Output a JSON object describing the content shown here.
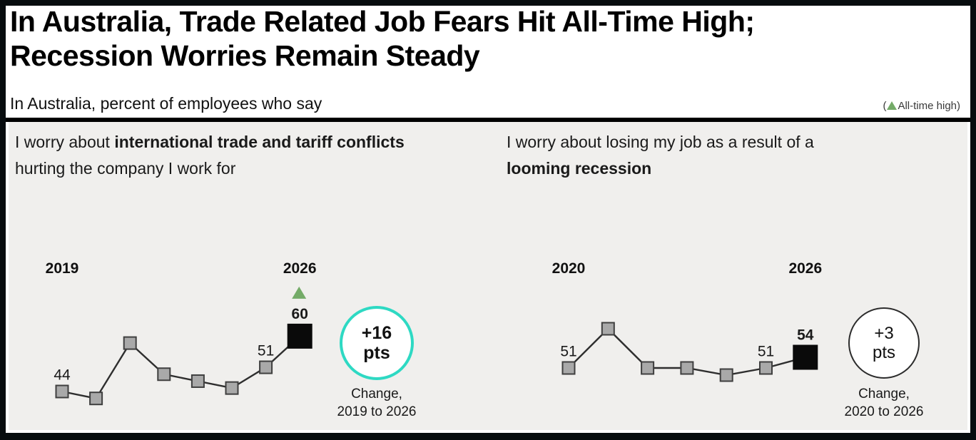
{
  "header": {
    "title_line1": "In Australia, Trade Related Job Fears Hit All-Time High;",
    "title_line2": "Recession Worries Remain Steady",
    "subtitle": "In Australia, percent of employees who say",
    "legend_prefix": "(",
    "legend_label": "All-time high)"
  },
  "colors": {
    "teal": "#2ed9c3",
    "green": "#74ab68",
    "line": "#2e2e2e",
    "gray_marker_fill": "#a9a9a9",
    "gray_marker_stroke": "#3f3f3f",
    "black_marker": "#0a0a0a",
    "panel_background": "#f0efed"
  },
  "panels": [
    {
      "line1_regular": "I worry about ",
      "line1_bold": "international trade and tariff conflicts",
      "line2_regular": "hurting the company I work for",
      "line2_bold": ""
    },
    {
      "line1_regular": "I worry about losing my job as a result of a",
      "line1_bold": "",
      "line2_regular": "",
      "line2_bold": "looming recession"
    }
  ],
  "chart_data": [
    {
      "type": "line",
      "title": "I worry about international trade and tariff conflicts hurting the company I work for",
      "x": [
        2019,
        2020,
        2021,
        2022,
        2023,
        2024,
        2025,
        2026
      ],
      "values": [
        44,
        42,
        58,
        49,
        47,
        45,
        51,
        60
      ],
      "point_labels": [
        "44",
        "",
        "",
        "",
        "",
        "",
        "51",
        "60"
      ],
      "start_year_label": "2019",
      "end_year_label": "2026",
      "end_marker": "black-square",
      "all_time_high_on_end": true,
      "legend_position": "none",
      "grid": false,
      "badge": {
        "value": "+16",
        "unit": "pts",
        "caption_line1": "Change,",
        "caption_line2": "2019 to 2026"
      }
    },
    {
      "type": "line",
      "title": "I worry about losing my job as a result of a looming recession",
      "x": [
        2020,
        2021,
        2022,
        2023,
        2024,
        2025,
        2026
      ],
      "values": [
        51,
        62,
        51,
        51,
        49,
        51,
        54
      ],
      "point_labels": [
        "51",
        "",
        "",
        "",
        "",
        "51",
        "54"
      ],
      "start_year_label": "2020",
      "end_year_label": "2026",
      "end_marker": "black-square",
      "all_time_high_on_end": false,
      "legend_position": "none",
      "grid": false,
      "badge": {
        "value": "+3",
        "unit": "pts",
        "caption_line1": "Change,",
        "caption_line2": "2020 to 2026"
      }
    }
  ]
}
